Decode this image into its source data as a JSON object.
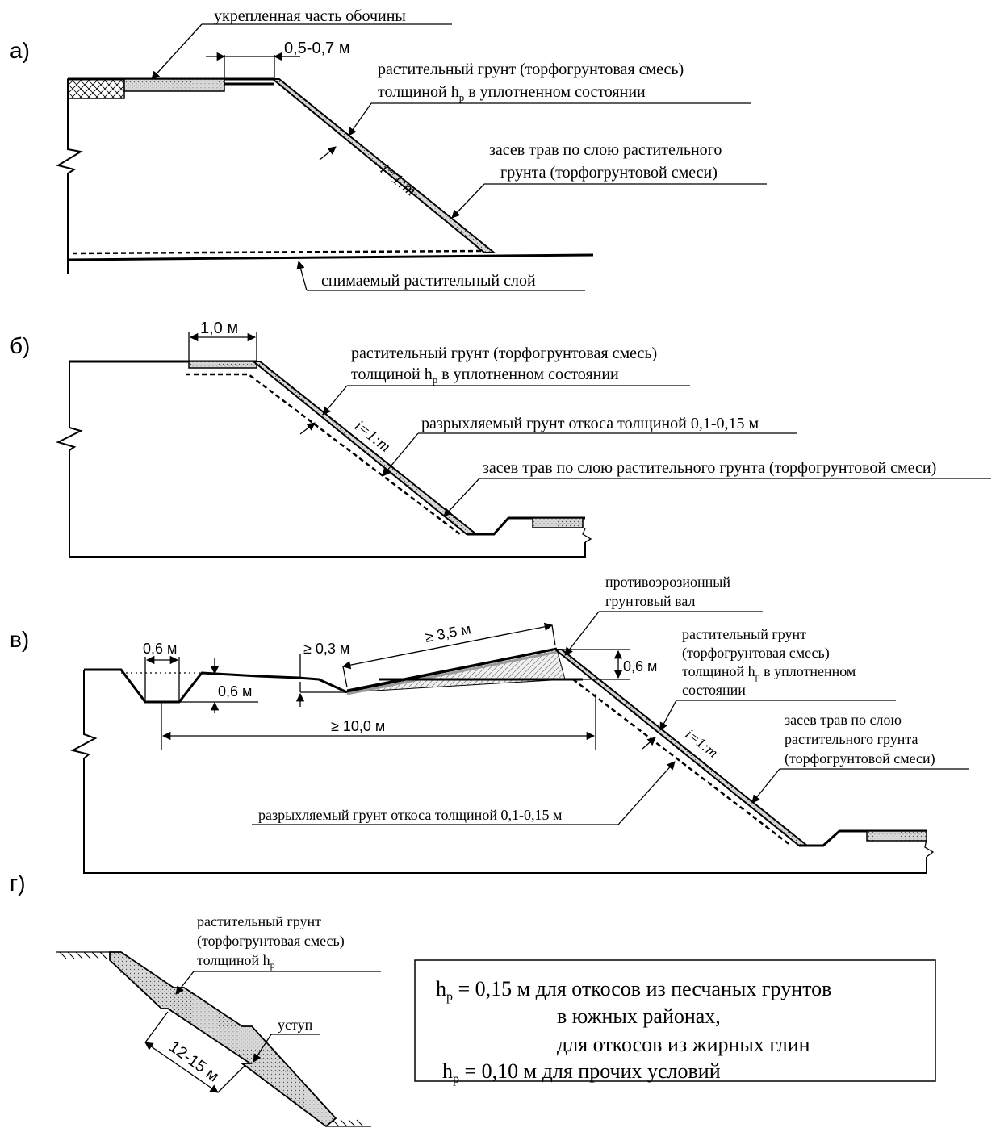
{
  "panels": {
    "a": {
      "label": "а)",
      "shoulder": "укрепленная часть обочины",
      "width": "0,5-0,7 м",
      "soil_line1": "растительный грунт (торфогрунтовая смесь)",
      "soil_line2": "толщиной h",
      "soil_sub": "р",
      "soil_line2b": " в уплотненном состоянии",
      "slope": "i=1:m",
      "seed_line1": "засев трав по слою растительного",
      "seed_line2": "грунта (торфогрунтовой смеси)",
      "removed": "снимаемый растительный слой"
    },
    "b": {
      "label": "б)",
      "width": "1,0 м",
      "soil_line1": "растительный грунт (торфогрунтовая смесь)",
      "soil_line2": "толщиной h",
      "soil_sub": "р",
      "soil_line2b": " в уплотненном состоянии",
      "slope": "i=1:m",
      "loosened": "разрыхляемый грунт откоса толщиной 0,1-0,15 м",
      "seed": "засев трав по слою растительного грунта (торфогрунтовой смеси)"
    },
    "c": {
      "label": "в)",
      "ditch_width": "0,6 м",
      "ditch_depth": "0,6 м",
      "min_height": "≥ 0,3 м",
      "bank_length": "≥ 3,5 м",
      "bank_height": "0,6 м",
      "total_length": "≥ 10,0 м",
      "bank_line1": "противоэрозионный",
      "bank_line2": "грунтовый вал",
      "soil_line1": "растительный грунт",
      "soil_line2": "(торфогрунтовая смесь)",
      "soil_line3": "толщиной h",
      "soil_sub": "р",
      "soil_line3b": " в уплотненном",
      "soil_line4": "состоянии",
      "slope": "i=1:m",
      "seed_line1": "засев трав по слою",
      "seed_line2": "растительного грунта",
      "seed_line3": "(торфогрунтовой смеси)",
      "loosened": "разрыхляемый грунт откоса толщиной 0,1-0,15 м"
    },
    "d": {
      "label": "г)",
      "soil_line1": "растительный грунт",
      "soil_line2": "(торфогрунтовая смесь)",
      "soil_line3": "толщиной h",
      "soil_sub": "р",
      "step": "уступ",
      "step_spacing": "12-15 м"
    }
  },
  "legend": {
    "h_sym": "h",
    "h_sub": "р",
    "line1": " = 0,15 м для откосов из песчаных грунтов",
    "line2": "в южных районах,",
    "line3": "для откосов из жирных глин",
    "line4": " = 0,10 м для прочих условий"
  }
}
